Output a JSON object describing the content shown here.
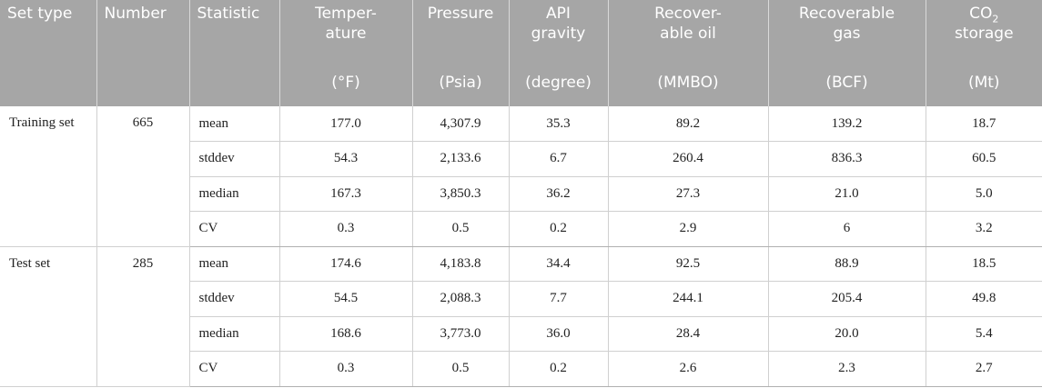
{
  "header": {
    "set_type": "Set type",
    "number": "Number",
    "statistic": "Statistic",
    "columns": [
      {
        "name_lines": [
          "Temper-",
          "ature"
        ],
        "unit": "(°F)"
      },
      {
        "name_lines": [
          "Pressure",
          ""
        ],
        "unit": "(Psia)"
      },
      {
        "name_lines": [
          "API",
          "gravity"
        ],
        "unit": "(degree)"
      },
      {
        "name_lines": [
          "Recover-",
          "able oil"
        ],
        "unit": "(MMBO)"
      },
      {
        "name_lines": [
          "Recoverable",
          "gas"
        ],
        "unit": "(BCF)"
      },
      {
        "name_lines": [
          "CO",
          "storage"
        ],
        "sub": "2",
        "unit": "(Mt)"
      }
    ]
  },
  "groups": [
    {
      "set_type": "Training set",
      "number": "665",
      "rows": [
        {
          "stat": "mean",
          "values": [
            "177.0",
            "4,307.9",
            "35.3",
            "89.2",
            "139.2",
            "18.7"
          ]
        },
        {
          "stat": "stddev",
          "values": [
            "54.3",
            "2,133.6",
            "6.7",
            "260.4",
            "836.3",
            "60.5"
          ]
        },
        {
          "stat": "median",
          "values": [
            "167.3",
            "3,850.3",
            "36.2",
            "27.3",
            "21.0",
            "5.0"
          ]
        },
        {
          "stat": "CV",
          "values": [
            "0.3",
            "0.5",
            "0.2",
            "2.9",
            "6",
            "3.2"
          ]
        }
      ]
    },
    {
      "set_type": "Test set",
      "number": "285",
      "rows": [
        {
          "stat": "mean",
          "values": [
            "174.6",
            "4,183.8",
            "34.4",
            "92.5",
            "88.9",
            "18.5"
          ]
        },
        {
          "stat": "stddev",
          "values": [
            "54.5",
            "2,088.3",
            "7.7",
            "244.1",
            "205.4",
            "49.8"
          ]
        },
        {
          "stat": "median",
          "values": [
            "168.6",
            "3,773.0",
            "36.0",
            "28.4",
            "20.0",
            "5.4"
          ]
        },
        {
          "stat": "CV",
          "values": [
            "0.3",
            "0.5",
            "0.2",
            "2.6",
            "2.3",
            "2.7"
          ]
        }
      ]
    }
  ]
}
